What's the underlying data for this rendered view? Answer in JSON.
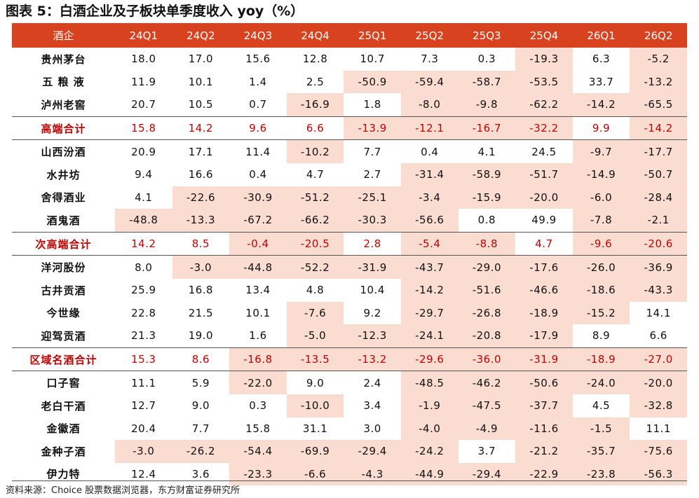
{
  "title": "图表 5：白酒企业及子板块单季度收入 yoy（%）",
  "source": "资料来源：Choice 股票数据浏览器，东方财富证券研究所",
  "colors": {
    "header_bg": "#d9421f",
    "negative_fill": "#fbdcd0",
    "subtotal_text": "#c00000"
  },
  "table": {
    "headers": [
      "酒企",
      "24Q1",
      "24Q2",
      "24Q3",
      "24Q4",
      "25Q1",
      "25Q2",
      "25Q3",
      "25Q4",
      "26Q1",
      "26Q2"
    ],
    "rows": [
      {
        "name": "贵州茅台",
        "subtotal": false,
        "values": [
          "18.0",
          "17.0",
          "15.6",
          "12.8",
          "10.7",
          "7.3",
          "0.3",
          "-19.3",
          "6.3",
          "-5.2"
        ]
      },
      {
        "name": "五 粮 液",
        "subtotal": false,
        "values": [
          "11.9",
          "10.1",
          "1.4",
          "2.5",
          "-50.9",
          "-59.4",
          "-58.7",
          "-53.5",
          "33.7",
          "-13.2"
        ]
      },
      {
        "name": "泸州老窖",
        "subtotal": false,
        "values": [
          "20.7",
          "10.5",
          "0.7",
          "-16.9",
          "1.8",
          "-8.0",
          "-9.8",
          "-62.2",
          "-14.2",
          "-65.5"
        ]
      },
      {
        "name": "高端合计",
        "subtotal": true,
        "values": [
          "15.8",
          "14.2",
          "9.6",
          "6.6",
          "-13.9",
          "-12.1",
          "-16.7",
          "-32.2",
          "9.9",
          "-14.2"
        ]
      },
      {
        "name": "山西汾酒",
        "subtotal": false,
        "values": [
          "20.9",
          "17.1",
          "11.4",
          "-10.2",
          "7.7",
          "0.4",
          "4.1",
          "24.5",
          "-9.7",
          "-17.7"
        ]
      },
      {
        "name": "水井坊",
        "subtotal": false,
        "values": [
          "9.4",
          "16.6",
          "0.4",
          "4.7",
          "2.7",
          "-31.4",
          "-58.9",
          "-51.7",
          "-14.9",
          "-50.7"
        ]
      },
      {
        "name": "舍得酒业",
        "subtotal": false,
        "values": [
          "4.1",
          "-22.6",
          "-30.9",
          "-51.2",
          "-25.1",
          "-3.4",
          "-15.9",
          "-20.0",
          "-6.0",
          "-28.4"
        ]
      },
      {
        "name": "酒鬼酒",
        "subtotal": false,
        "values": [
          "-48.8",
          "-13.3",
          "-67.2",
          "-66.2",
          "-30.3",
          "-56.6",
          "0.8",
          "49.9",
          "-7.8",
          "-2.1"
        ]
      },
      {
        "name": "次高端合计",
        "subtotal": true,
        "values": [
          "14.2",
          "8.5",
          "-0.4",
          "-20.5",
          "2.8",
          "-5.4",
          "-8.8",
          "4.7",
          "-9.6",
          "-20.6"
        ]
      },
      {
        "name": "洋河股份",
        "subtotal": false,
        "values": [
          "8.0",
          "-3.0",
          "-44.8",
          "-52.2",
          "-31.9",
          "-43.7",
          "-29.0",
          "-17.6",
          "-26.0",
          "-36.9"
        ]
      },
      {
        "name": "古井贡酒",
        "subtotal": false,
        "values": [
          "25.9",
          "16.8",
          "13.4",
          "4.8",
          "10.4",
          "-14.2",
          "-51.6",
          "-46.6",
          "-18.6",
          "-43.3"
        ]
      },
      {
        "name": "今世缘",
        "subtotal": false,
        "values": [
          "22.8",
          "21.5",
          "10.1",
          "-7.6",
          "9.2",
          "-29.7",
          "-26.8",
          "-18.9",
          "-15.2",
          "14.1"
        ]
      },
      {
        "name": "迎驾贡酒",
        "subtotal": false,
        "values": [
          "21.3",
          "19.0",
          "1.6",
          "-5.0",
          "-12.3",
          "-24.1",
          "-20.8",
          "-17.9",
          "8.9",
          "6.6"
        ]
      },
      {
        "name": "区域名酒合计",
        "subtotal": true,
        "values": [
          "15.3",
          "8.6",
          "-16.8",
          "-13.5",
          "-13.2",
          "-29.6",
          "-36.0",
          "-31.9",
          "-18.9",
          "-27.0"
        ]
      },
      {
        "name": "口子窖",
        "subtotal": false,
        "values": [
          "11.1",
          "5.9",
          "-22.0",
          "9.0",
          "2.4",
          "-48.5",
          "-46.2",
          "-50.6",
          "-24.0",
          "-20.0"
        ]
      },
      {
        "name": "老白干酒",
        "subtotal": false,
        "values": [
          "12.7",
          "9.0",
          "0.3",
          "-10.0",
          "3.4",
          "-1.9",
          "-47.5",
          "-37.7",
          "4.5",
          "-32.8"
        ]
      },
      {
        "name": "金徽酒",
        "subtotal": false,
        "values": [
          "20.4",
          "7.7",
          "15.8",
          "31.1",
          "3.0",
          "-4.0",
          "-4.9",
          "-11.6",
          "-1.5",
          "11.1"
        ]
      },
      {
        "name": "金种子酒",
        "subtotal": false,
        "values": [
          "-3.0",
          "-26.2",
          "-54.4",
          "-69.9",
          "-29.4",
          "-24.2",
          "3.7",
          "-21.2",
          "-35.7",
          "-75.6"
        ]
      },
      {
        "name": "伊力特",
        "subtotal": false,
        "values": [
          "12.4",
          "3.6",
          "-23.3",
          "-6.6",
          "-4.3",
          "-44.9",
          "-29.4",
          "-22.9",
          "-23.8",
          "-56.3"
        ]
      }
    ]
  }
}
